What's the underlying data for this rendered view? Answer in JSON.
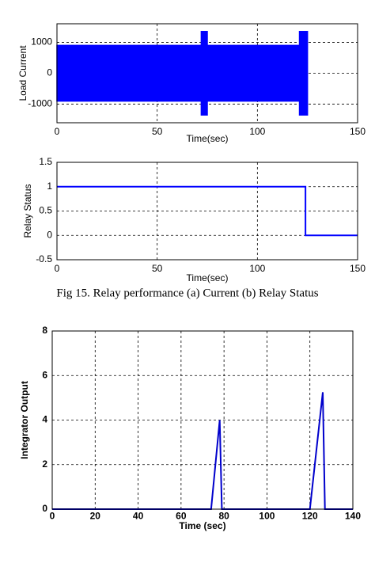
{
  "caption": "Fig 15. Relay performance (a) Current (b) Relay Status",
  "chart_data": [
    {
      "type": "band",
      "ylabel": "Load Current",
      "xlabel": "Time(sec)",
      "color": "#0000ff",
      "bins": [
        0,
        72,
        75,
        121,
        125,
        150
      ],
      "high": [
        900,
        1350,
        900,
        1350,
        0
      ],
      "low": [
        -900,
        -1350,
        -900,
        -1350,
        0
      ],
      "xlim": [
        0,
        150
      ],
      "xticks": [
        0,
        50,
        100,
        150
      ],
      "ylim": [
        -1600,
        1600
      ],
      "yticks": [
        -1000,
        0,
        1000
      ],
      "grid": true
    },
    {
      "type": "line",
      "ylabel": "Relay Status",
      "xlabel": "Time(sec)",
      "color": "#0000ff",
      "x": [
        0,
        124,
        124,
        150
      ],
      "values": [
        1,
        1,
        0,
        0
      ],
      "xlim": [
        0,
        150
      ],
      "xticks": [
        0,
        50,
        100,
        150
      ],
      "ylim": [
        -0.5,
        1.5
      ],
      "yticks": [
        -0.5,
        0,
        0.5,
        1,
        1.5
      ],
      "grid": true
    },
    {
      "type": "line",
      "ylabel": "Integrator Output",
      "xlabel": "Time (sec)",
      "color": "#0000cc",
      "x": [
        0,
        74,
        78,
        79,
        120,
        126,
        127,
        140
      ],
      "values": [
        0,
        0,
        4,
        0,
        0,
        5.25,
        0,
        0
      ],
      "xlim": [
        0,
        140
      ],
      "xticks": [
        0,
        20,
        40,
        60,
        80,
        100,
        120,
        140
      ],
      "ylim": [
        0,
        8
      ],
      "yticks": [
        0,
        2,
        4,
        6,
        8
      ],
      "grid": true
    }
  ]
}
